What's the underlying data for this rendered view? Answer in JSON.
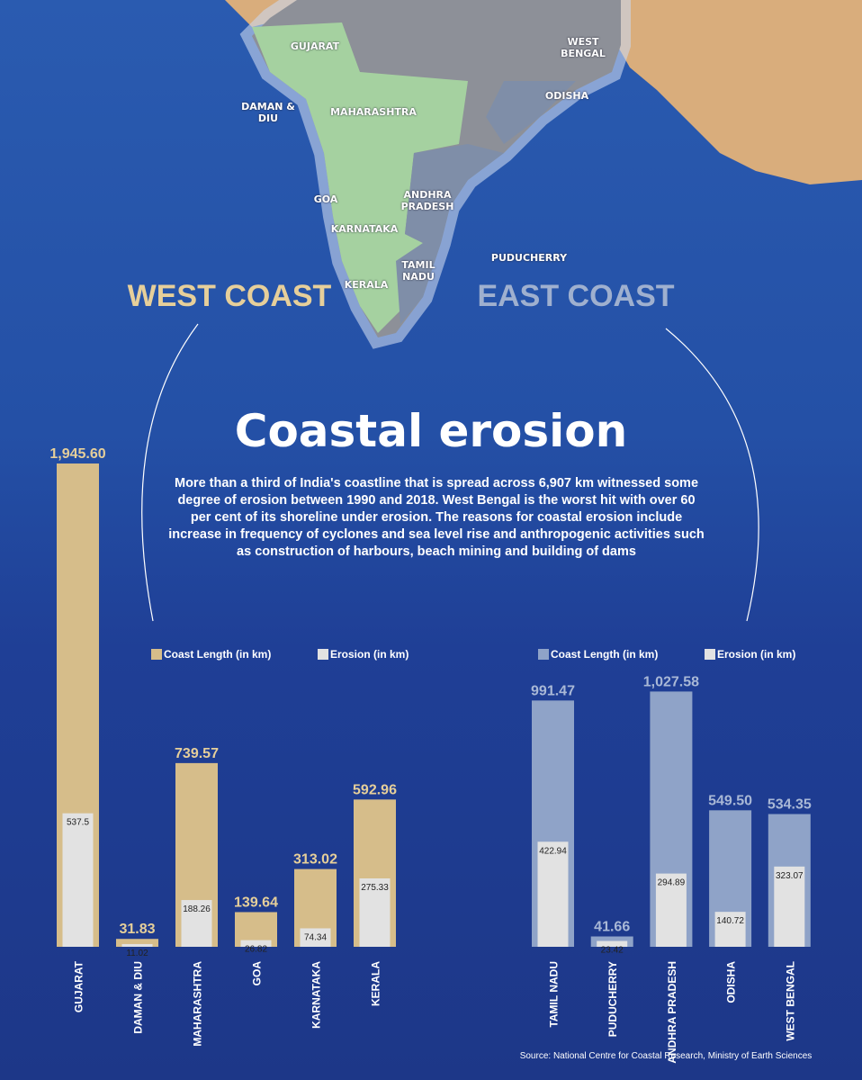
{
  "title": "Coastal erosion",
  "description": "More than a third of India's coastline that is spread across 6,907 km witnessed some degree of erosion between 1990 and 2018.  West Bengal is the worst hit with over 60 per cent of its shoreline under erosion. The reasons for coastal erosion include increase in frequency of cyclones and sea level rise and anthropogenic activities such as construction of harbours, beach mining and building of dams",
  "source": "Source: National Centre for Coastal Research, Ministry of Earth Sciences",
  "map": {
    "labels": [
      "GUJARAT",
      "DAMAN & DIU",
      "MAHARASHTRA",
      "GOA",
      "KARNATAKA",
      "KERALA",
      "ANDHRA PRADESH",
      "TAMIL NADU",
      "PUDUCHERRY",
      "ODISHA",
      "WEST BENGAL"
    ]
  },
  "chart_data": [
    {
      "type": "bar",
      "title": "WEST COAST",
      "categories": [
        "GUJARAT",
        "DAMAN & DIU",
        "MAHARASHTRA",
        "GOA",
        "KARNATAKA",
        "KERALA"
      ],
      "series": [
        {
          "name": "Coast Length (in km)",
          "color": "#d6bd8a",
          "values": [
            1945.6,
            31.83,
            739.57,
            139.64,
            313.02,
            592.96
          ],
          "value_labels": [
            "1,945.60",
            "31.83",
            "739.57",
            "139.64",
            "313.02",
            "592.96"
          ]
        },
        {
          "name": "Erosion (in km)",
          "color": "#e2e2e2",
          "values": [
            537.5,
            11.02,
            188.26,
            26.82,
            74.34,
            275.33
          ]
        }
      ]
    },
    {
      "type": "bar",
      "title": "EAST COAST",
      "categories": [
        "TAMIL NADU",
        "PUDUCHERRY",
        "ANDHRA PRADESH",
        "ODISHA",
        "WEST BENGAL"
      ],
      "series": [
        {
          "name": "Coast Length (in km)",
          "color": "#8fa3c8",
          "values": [
            991.47,
            41.66,
            1027.58,
            549.5,
            534.35
          ],
          "value_labels": [
            "991.47",
            "41.66",
            "1,027.58",
            "549.50",
            "534.35"
          ]
        },
        {
          "name": "Erosion (in km)",
          "color": "#e2e2e2",
          "values": [
            422.94,
            23.42,
            294.89,
            140.72,
            323.07
          ]
        }
      ]
    }
  ]
}
